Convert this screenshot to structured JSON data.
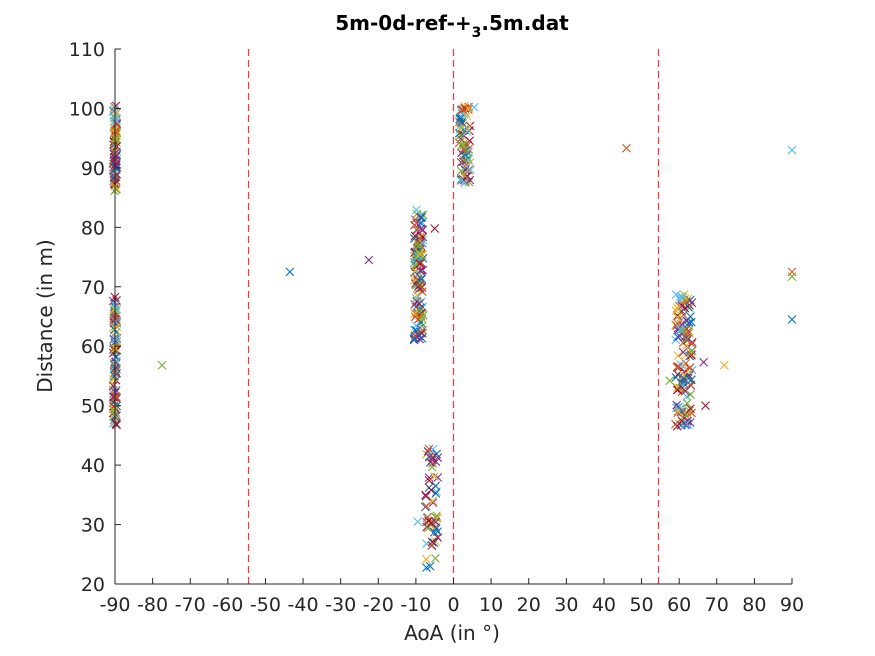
{
  "chart_data": {
    "type": "scatter",
    "title": "5m-0d-ref-+",
    "title_subscript": "3",
    "title_suffix": ".5m.dat",
    "xlabel": "AoA (in °)",
    "ylabel": "Distance (in m)",
    "xlim": [
      -90,
      90
    ],
    "ylim": [
      20,
      110
    ],
    "xticks": [
      -90,
      -80,
      -70,
      -60,
      -50,
      -40,
      -30,
      -20,
      -10,
      0,
      10,
      20,
      30,
      40,
      50,
      60,
      70,
      80,
      90
    ],
    "yticks": [
      20,
      30,
      40,
      50,
      60,
      70,
      80,
      90,
      100,
      110
    ],
    "grid": false,
    "marker": "x",
    "vertical_reference_lines": [
      -54.5,
      0,
      54.5
    ],
    "reference_line_color": "#ff3333",
    "colors": [
      "#0072bd",
      "#d95319",
      "#edb120",
      "#7e2f8e",
      "#77ac30",
      "#4dbeee",
      "#a2142f"
    ],
    "clusters": [
      {
        "x": [
          -90.5,
          -89.5
        ],
        "y": [
          86,
          100.5
        ],
        "count": 90
      },
      {
        "x": [
          -90.5,
          -89.5
        ],
        "y": [
          46.5,
          68.5
        ],
        "count": 110
      },
      {
        "x": [
          -10.5,
          -8
        ],
        "y": [
          61,
          83
        ],
        "count": 130
      },
      {
        "x": [
          -7.5,
          -4
        ],
        "y": [
          21.5,
          43.5
        ],
        "count": 60
      },
      {
        "x": [
          1.5,
          4.5
        ],
        "y": [
          87.5,
          100.5
        ],
        "count": 70
      },
      {
        "x": [
          59,
          63.5
        ],
        "y": [
          46.5,
          69
        ],
        "count": 130
      }
    ],
    "points": [
      {
        "x": 3,
        "y": 100
      },
      {
        "x": 4,
        "y": 100
      },
      {
        "x": 5.5,
        "y": 100.2
      },
      {
        "x": 2.5,
        "y": 99.8
      },
      {
        "x": -77.5,
        "y": 56.8
      },
      {
        "x": -43.5,
        "y": 72.5
      },
      {
        "x": -22.5,
        "y": 74.5
      },
      {
        "x": -5,
        "y": 79.8
      },
      {
        "x": -9,
        "y": 75.5
      },
      {
        "x": -9.5,
        "y": 30.5
      },
      {
        "x": 46,
        "y": 93.3
      },
      {
        "x": 57.5,
        "y": 54.2
      },
      {
        "x": 63,
        "y": 65
      },
      {
        "x": 66.5,
        "y": 57.3
      },
      {
        "x": 67,
        "y": 50
      },
      {
        "x": 72,
        "y": 56.8
      },
      {
        "x": 90,
        "y": 93
      },
      {
        "x": 90,
        "y": 72.5
      },
      {
        "x": 90,
        "y": 71.7
      },
      {
        "x": 90,
        "y": 64.5
      }
    ]
  }
}
